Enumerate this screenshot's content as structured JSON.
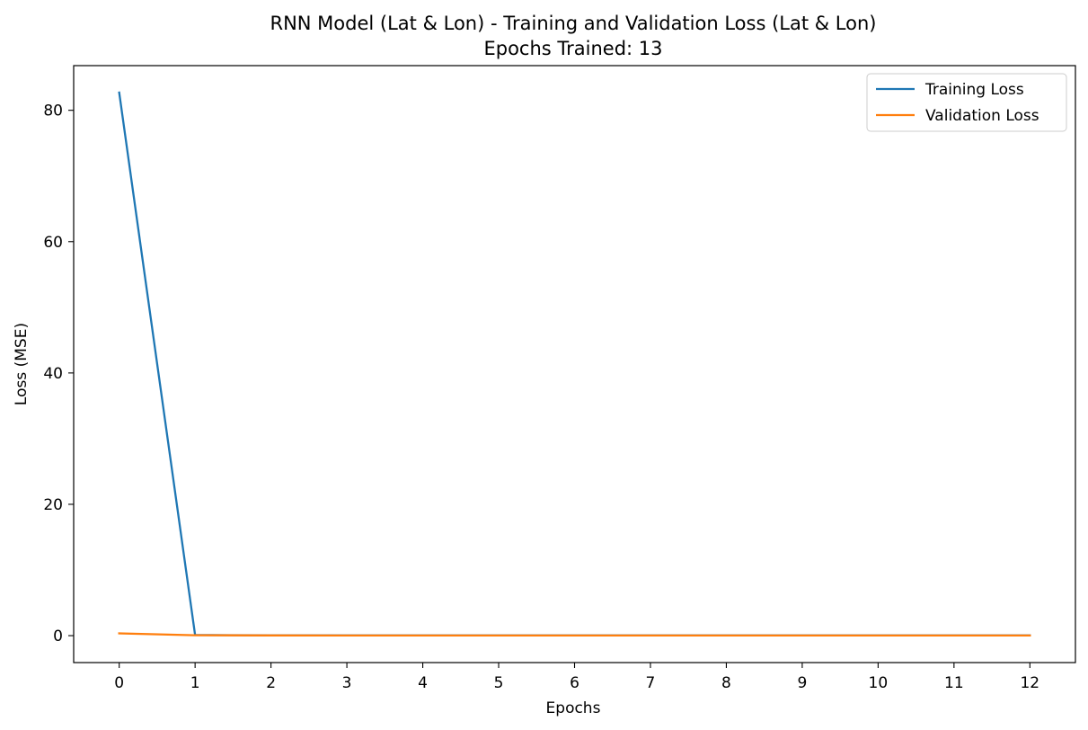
{
  "chart_data": {
    "type": "line",
    "title": "RNN Model (Lat & Lon) - Training and Validation Loss (Lat & Lon)",
    "subtitle": "Epochs Trained: 13",
    "xlabel": "Epochs",
    "ylabel": "Loss (MSE)",
    "xlim": [
      -0.6,
      12.6
    ],
    "ylim": [
      -4.1,
      86.8
    ],
    "x": [
      0,
      1,
      2,
      3,
      4,
      5,
      6,
      7,
      8,
      9,
      10,
      11,
      12
    ],
    "xticks": [
      0,
      1,
      2,
      3,
      4,
      5,
      6,
      7,
      8,
      9,
      10,
      11,
      12
    ],
    "yticks": [
      0,
      20,
      40,
      60,
      80
    ],
    "grid": false,
    "legend_position": "top-right",
    "series": [
      {
        "name": "Training Loss",
        "color": "#1f77b4",
        "values": [
          82.7,
          0.1,
          0.05,
          0.04,
          0.04,
          0.04,
          0.04,
          0.04,
          0.04,
          0.04,
          0.04,
          0.04,
          0.04
        ]
      },
      {
        "name": "Validation Loss",
        "color": "#ff7f0e",
        "values": [
          0.35,
          0.06,
          0.03,
          0.02,
          0.02,
          0.02,
          0.02,
          0.02,
          0.02,
          0.02,
          0.02,
          0.02,
          0.02
        ]
      }
    ]
  }
}
